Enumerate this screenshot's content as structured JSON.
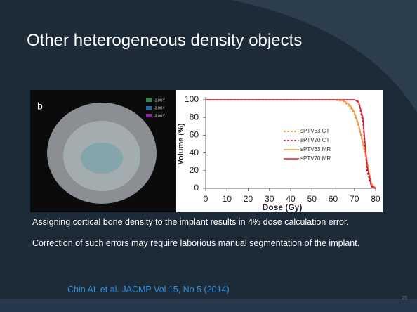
{
  "slide": {
    "title": "Other heterogeneous density objects",
    "body": [
      "Assigning cortical bone density to the implant results in 4% dose calculation error.",
      "Correction of such errors may require laborious manual segmentation of the implant."
    ],
    "citation": "Chin AL et al. JACMP Vol 15, No 5 (2014)",
    "page_number": "25"
  },
  "image": {
    "label": "b",
    "legend": [
      "-1.0GY",
      "-2.0GY",
      "-3.0GY"
    ]
  },
  "chart_data": {
    "type": "line",
    "x": [
      0,
      60,
      65,
      68,
      70,
      72,
      74,
      76,
      78,
      80
    ],
    "series": [
      {
        "name": "sPTV63 CT",
        "color": "#f0953a",
        "dashed": true,
        "values": [
          100,
          100,
          98,
          92,
          84,
          70,
          50,
          28,
          5,
          0
        ]
      },
      {
        "name": "sPTV70 CT",
        "color": "#b0152a",
        "dashed": true,
        "values": [
          100,
          100,
          100,
          100,
          100,
          97,
          75,
          20,
          2,
          0
        ]
      },
      {
        "name": "sPTV63 MR",
        "color": "#f0953a",
        "dashed": false,
        "values": [
          100,
          100,
          99,
          94,
          86,
          72,
          52,
          30,
          6,
          0
        ]
      },
      {
        "name": "sPTV70 MR",
        "color": "#e0203a",
        "dashed": false,
        "values": [
          100,
          100,
          100,
          100,
          100,
          98,
          80,
          25,
          3,
          0
        ]
      }
    ],
    "xlabel": "Dose (Gy)",
    "ylabel": "Volume (%)",
    "xlim": [
      0,
      80
    ],
    "xticks": [
      0,
      10,
      20,
      30,
      40,
      50,
      60,
      70,
      80
    ],
    "ylim": [
      0,
      100
    ],
    "yticks": [
      0,
      20,
      40,
      60,
      80,
      100
    ]
  }
}
